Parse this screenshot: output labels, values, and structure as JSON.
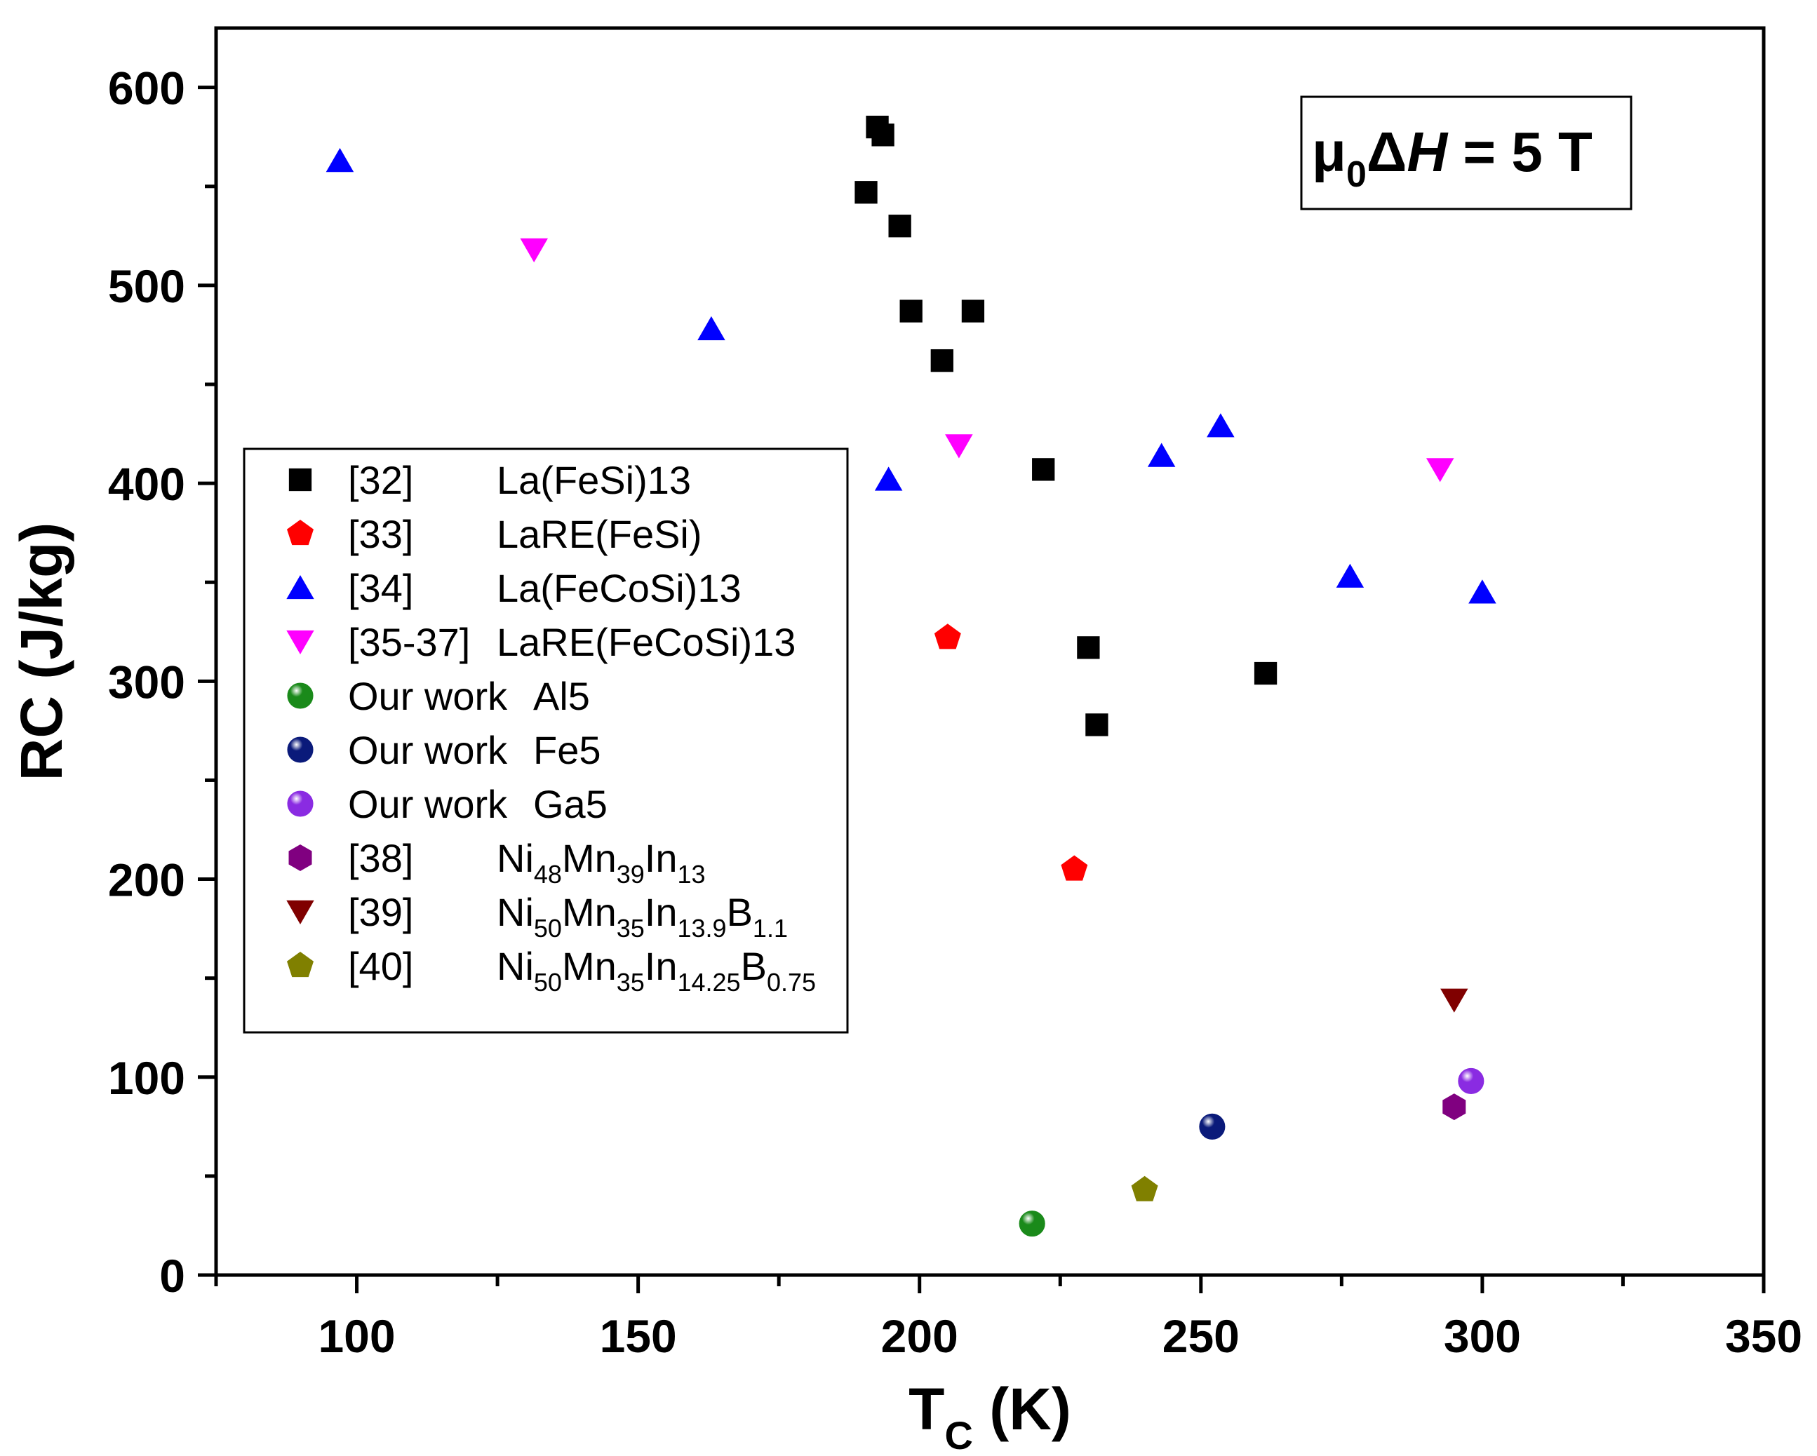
{
  "chart_data": {
    "type": "scatter",
    "xlabel": {
      "main": "T",
      "sub": "C",
      "unit": " (K)"
    },
    "ylabel": "RC (J/kg)",
    "xlim": [
      75,
      350
    ],
    "ylim": [
      0,
      630
    ],
    "x_ticks": [
      100,
      150,
      200,
      250,
      300,
      350
    ],
    "y_ticks": [
      0,
      100,
      200,
      300,
      400,
      500,
      600
    ],
    "x_tick_labels": [
      "100",
      "150",
      "200",
      "250",
      "300",
      "350"
    ],
    "y_tick_labels": [
      "0",
      "100",
      "200",
      "300",
      "400",
      "500",
      "600"
    ],
    "annotation": {
      "mu": "μ",
      "mu_sub": "0",
      "delta": "Δ",
      "H": "H",
      "rest": " = 5 T"
    },
    "legend_position": "middle-left",
    "series": [
      {
        "ref": "[32]",
        "label": [
          {
            "t": "La(FeSi)13"
          }
        ],
        "marker": "square",
        "color": "#000000",
        "points": [
          [
            190.5,
            547
          ],
          [
            192.5,
            580
          ],
          [
            193.5,
            576
          ],
          [
            196.5,
            530
          ],
          [
            198.5,
            487
          ],
          [
            204.0,
            462
          ],
          [
            209.5,
            487
          ],
          [
            222.0,
            407
          ],
          [
            230.0,
            317
          ],
          [
            231.5,
            278
          ],
          [
            261.5,
            304
          ]
        ]
      },
      {
        "ref": "[33]",
        "label": [
          {
            "t": "LaRE(FeSi)"
          }
        ],
        "marker": "pentagon",
        "color": "#ff0000",
        "points": [
          [
            205.0,
            322
          ],
          [
            227.5,
            205
          ]
        ]
      },
      {
        "ref": "[34]",
        "label": [
          {
            "t": "La(FeCoSi)13"
          }
        ],
        "marker": "triangle-up",
        "color": "#0000ff",
        "points": [
          [
            97.0,
            563
          ],
          [
            163.0,
            478
          ],
          [
            194.5,
            402
          ],
          [
            243.0,
            414
          ],
          [
            253.5,
            429
          ],
          [
            276.5,
            353
          ],
          [
            300.0,
            345
          ]
        ]
      },
      {
        "ref": "[35-37]",
        "label": [
          {
            "t": "LaRE(FeCoSi)13"
          }
        ],
        "marker": "triangle-down",
        "color": "#ff00ff",
        "points": [
          [
            131.5,
            518
          ],
          [
            207.0,
            419
          ],
          [
            292.5,
            407
          ]
        ]
      },
      {
        "ref": "Our work",
        "label": [
          {
            "t": "Al5"
          }
        ],
        "marker": "sphere",
        "color": "#1a8a1a",
        "points": [
          [
            220.0,
            26
          ]
        ]
      },
      {
        "ref": "Our work",
        "label": [
          {
            "t": "Fe5"
          }
        ],
        "marker": "sphere",
        "color": "#0a1a7a",
        "points": [
          [
            252.0,
            75
          ]
        ]
      },
      {
        "ref": "Our work",
        "label": [
          {
            "t": "Ga5"
          }
        ],
        "marker": "sphere",
        "color": "#8a2be2",
        "points": [
          [
            298.0,
            98
          ]
        ]
      },
      {
        "ref": "[38]",
        "label": [
          {
            "t": "Ni"
          },
          {
            "t": "48",
            "sub": true
          },
          {
            "t": "Mn"
          },
          {
            "t": "39",
            "sub": true
          },
          {
            "t": "In"
          },
          {
            "t": "13",
            "sub": true
          }
        ],
        "marker": "hexagon",
        "color": "#800080",
        "points": [
          [
            295.0,
            85
          ]
        ]
      },
      {
        "ref": "[39]",
        "label": [
          {
            "t": "Ni"
          },
          {
            "t": "50",
            "sub": true
          },
          {
            "t": "Mn"
          },
          {
            "t": "35",
            "sub": true
          },
          {
            "t": "In"
          },
          {
            "t": "13.9",
            "sub": true
          },
          {
            "t": "B"
          },
          {
            "t": "1.1",
            "sub": true
          }
        ],
        "marker": "triangle-down",
        "color": "#800000",
        "points": [
          [
            295.0,
            139
          ]
        ]
      },
      {
        "ref": "[40]",
        "label": [
          {
            "t": "Ni"
          },
          {
            "t": "50",
            "sub": true
          },
          {
            "t": "Mn"
          },
          {
            "t": "35",
            "sub": true
          },
          {
            "t": "In"
          },
          {
            "t": "14.25",
            "sub": true
          },
          {
            "t": "B"
          },
          {
            "t": "0.75",
            "sub": true
          }
        ],
        "marker": "pentagon",
        "color": "#808000",
        "points": [
          [
            240.0,
            43
          ]
        ]
      }
    ]
  }
}
